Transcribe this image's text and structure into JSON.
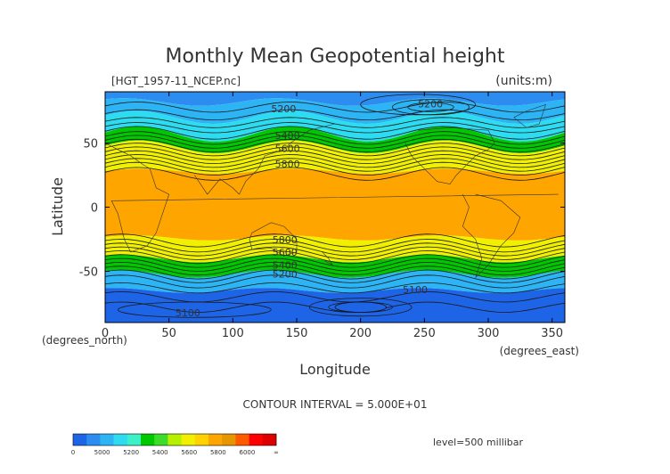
{
  "chart_data": {
    "type": "contour-map",
    "title": "Monthly Mean Geopotential height",
    "file_label": "[HGT_1957-11_NCEP.nc]",
    "units_label": "(units:m)",
    "xlabel": "Longitude",
    "ylabel": "Latitude",
    "x_unit_label": "(degrees_east)",
    "y_unit_label": "(degrees_north)",
    "xlim": [
      0,
      360
    ],
    "ylim": [
      -90,
      90
    ],
    "x_ticks": [
      0,
      50,
      100,
      150,
      200,
      250,
      300,
      350
    ],
    "y_ticks": [
      50,
      0,
      -50
    ],
    "contour_interval_label": "CONTOUR INTERVAL = 5.000E+01",
    "level_label": "level=500 millibar",
    "contour_labels": [
      {
        "text": "5200",
        "lon": 130,
        "lat": 74
      },
      {
        "text": "5200",
        "lon": 245,
        "lat": 78
      },
      {
        "text": "5400",
        "lon": 133,
        "lat": 53
      },
      {
        "text": "5600",
        "lon": 133,
        "lat": 43
      },
      {
        "text": "5800",
        "lon": 133,
        "lat": 31
      },
      {
        "text": "5800",
        "lon": 131,
        "lat": -28
      },
      {
        "text": "5600",
        "lon": 131,
        "lat": -38
      },
      {
        "text": "5400",
        "lon": 131,
        "lat": -48
      },
      {
        "text": "5200",
        "lon": 131,
        "lat": -55
      },
      {
        "text": "5100",
        "lon": 233,
        "lat": -67
      },
      {
        "text": "5100",
        "lon": 55,
        "lat": -85
      }
    ],
    "colorbar": {
      "colors": [
        "#1e64e6",
        "#2d8cf0",
        "#2db4f5",
        "#2ddcf0",
        "#3cf0c8",
        "#00c800",
        "#3cdc28",
        "#b4f000",
        "#f0f000",
        "#ffd200",
        "#ffa500",
        "#e69600",
        "#ff5a00",
        "#ff0000",
        "#dc0000"
      ],
      "labels": [
        "0",
        "5000",
        "5200",
        "5400",
        "5600",
        "5800",
        "6000",
        "∞"
      ]
    },
    "bands": [
      {
        "name": "polar-north-deep",
        "color": "#2d8cf0"
      },
      {
        "name": "polar-north",
        "color": "#2db4f5"
      },
      {
        "name": "arctic-cap",
        "color": "#2ddcf0"
      },
      {
        "name": "mid-north-green",
        "color": "#00c800"
      },
      {
        "name": "mid-north-yellow",
        "color": "#f0f000"
      },
      {
        "name": "tropics-orange",
        "color": "#ffa500"
      },
      {
        "name": "mid-south-yellow",
        "color": "#f0f000"
      },
      {
        "name": "mid-south-green",
        "color": "#00c800"
      },
      {
        "name": "polar-south",
        "color": "#2db4f5"
      },
      {
        "name": "antarctic",
        "color": "#1e64e6"
      }
    ]
  }
}
